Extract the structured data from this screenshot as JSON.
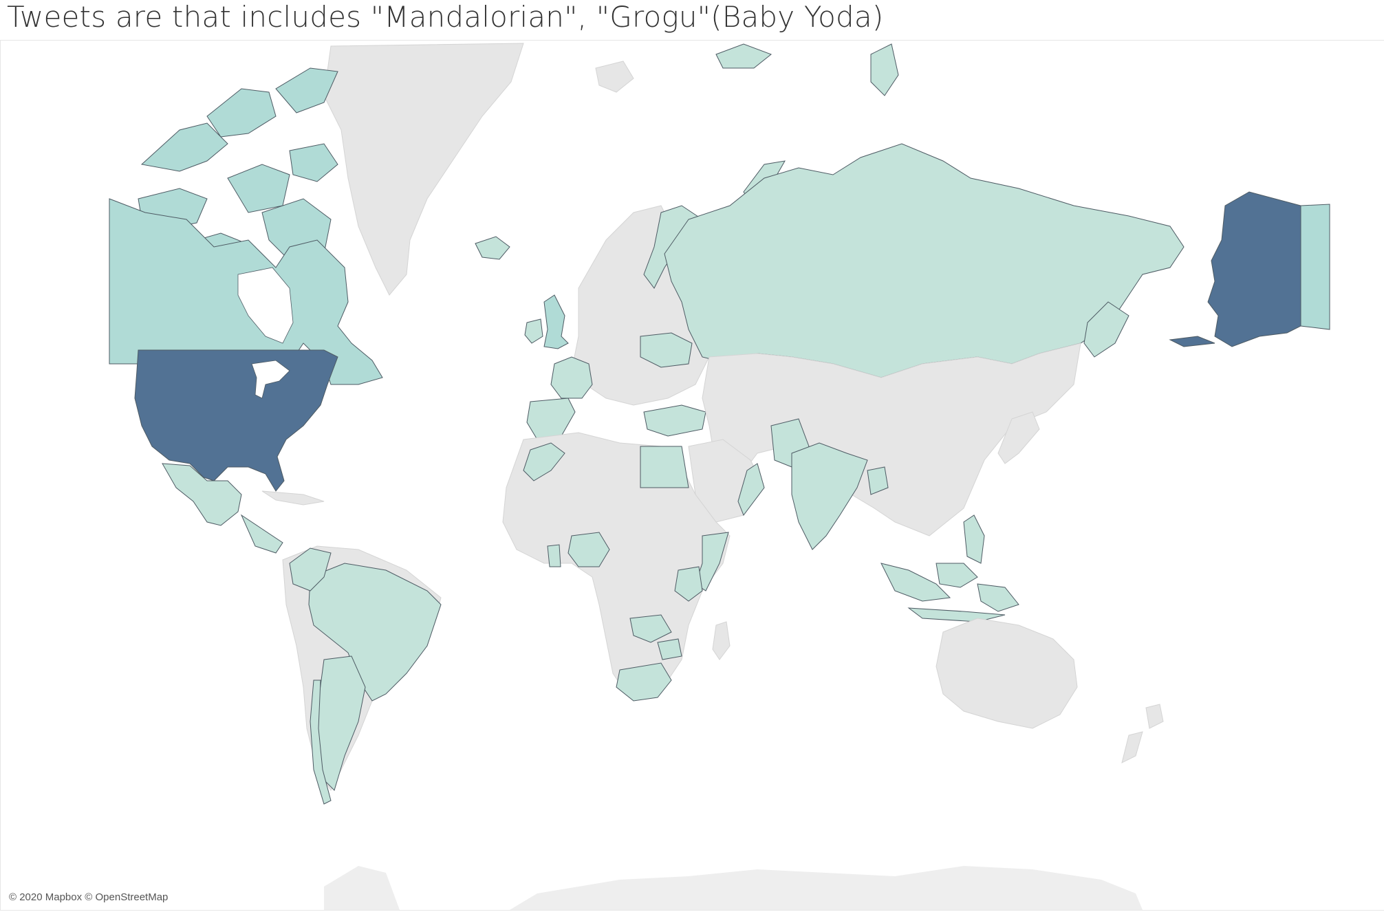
{
  "title": "Tweets are that includes \"Mandalorian\", \"Grogu\"(Baby Yoda)",
  "attribution": "© 2020 Mapbox © OpenStreetMap",
  "colors": {
    "background": "#ffffff",
    "no_data_land": "#e6e6e6",
    "low": "#c4e3da",
    "mid": "#b0dbd6",
    "high": "#527294",
    "border": "#4d5a63"
  },
  "map_data": {
    "type": "choropleth",
    "shaded_regions": [
      {
        "name": "United States",
        "level": "high"
      },
      {
        "name": "Alaska",
        "level": "high"
      },
      {
        "name": "Canada",
        "level": "mid"
      },
      {
        "name": "Greenland",
        "level": "none"
      },
      {
        "name": "Mexico",
        "level": "low"
      },
      {
        "name": "Brazil",
        "level": "low"
      },
      {
        "name": "Argentina",
        "level": "low"
      },
      {
        "name": "Chile",
        "level": "low"
      },
      {
        "name": "Colombia",
        "level": "low"
      },
      {
        "name": "Russia",
        "level": "low"
      },
      {
        "name": "United Kingdom",
        "level": "mid"
      },
      {
        "name": "Ireland",
        "level": "low"
      },
      {
        "name": "France",
        "level": "low"
      },
      {
        "name": "Spain",
        "level": "low"
      },
      {
        "name": "Norway",
        "level": "low"
      },
      {
        "name": "Ukraine",
        "level": "low"
      },
      {
        "name": "Turkey",
        "level": "low"
      },
      {
        "name": "Egypt",
        "level": "low"
      },
      {
        "name": "Morocco",
        "level": "low"
      },
      {
        "name": "Nigeria",
        "level": "low"
      },
      {
        "name": "Ghana",
        "level": "low"
      },
      {
        "name": "Kenya",
        "level": "low"
      },
      {
        "name": "Somalia",
        "level": "low"
      },
      {
        "name": "Zambia",
        "level": "low"
      },
      {
        "name": "Zimbabwe",
        "level": "low"
      },
      {
        "name": "South Africa",
        "level": "low"
      },
      {
        "name": "India",
        "level": "low"
      },
      {
        "name": "Pakistan",
        "level": "low"
      },
      {
        "name": "Bangladesh",
        "level": "low"
      },
      {
        "name": "Oman",
        "level": "low"
      },
      {
        "name": "Japan",
        "level": "none"
      },
      {
        "name": "Philippines",
        "level": "low"
      },
      {
        "name": "Indonesia",
        "level": "low"
      },
      {
        "name": "Malaysia",
        "level": "low"
      },
      {
        "name": "Australia",
        "level": "none"
      }
    ]
  }
}
